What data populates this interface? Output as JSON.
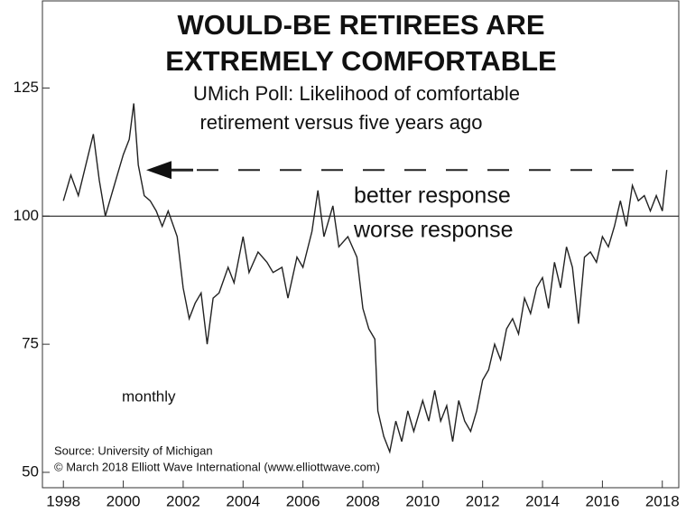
{
  "chart_data": {
    "type": "line",
    "title": [
      "WOULD-BE RETIREES ARE",
      "EXTREMELY COMFORTABLE"
    ],
    "subtitle": [
      "UMich Poll: Likelihood of comfortable",
      "retirement versus five years ago"
    ],
    "annotations": {
      "better": "better response",
      "worse": "worse response",
      "frequency": "monthly",
      "source": "Source: University of Michigan",
      "copyright": "© March 2018 Elliott Wave International (www.elliottwave.com)"
    },
    "reference_lines": [
      {
        "value": 100,
        "dash": false
      },
      {
        "value": 109,
        "dash": true
      }
    ],
    "series": [
      {
        "name": "UMich Poll",
        "color": "#222222",
        "x": [
          1998.0,
          1998.25,
          1998.5,
          1998.75,
          1999.0,
          1999.2,
          1999.4,
          1999.6,
          1999.8,
          2000.0,
          2000.2,
          2000.35,
          2000.5,
          2000.7,
          2000.9,
          2001.1,
          2001.3,
          2001.5,
          2001.8,
          2002.0,
          2002.2,
          2002.4,
          2002.6,
          2002.8,
          2003.0,
          2003.2,
          2003.5,
          2003.7,
          2004.0,
          2004.2,
          2004.5,
          2004.8,
          2005.0,
          2005.3,
          2005.5,
          2005.8,
          2006.0,
          2006.3,
          2006.5,
          2006.7,
          2007.0,
          2007.2,
          2007.5,
          2007.8,
          2008.0,
          2008.2,
          2008.4,
          2008.5,
          2008.7,
          2008.9,
          2009.1,
          2009.3,
          2009.5,
          2009.7,
          2010.0,
          2010.2,
          2010.4,
          2010.6,
          2010.8,
          2011.0,
          2011.2,
          2011.4,
          2011.6,
          2011.8,
          2012.0,
          2012.2,
          2012.4,
          2012.6,
          2012.8,
          2013.0,
          2013.2,
          2013.4,
          2013.6,
          2013.8,
          2014.0,
          2014.2,
          2014.4,
          2014.6,
          2014.8,
          2015.0,
          2015.2,
          2015.4,
          2015.6,
          2015.8,
          2016.0,
          2016.2,
          2016.4,
          2016.6,
          2016.8,
          2017.0,
          2017.2,
          2017.4,
          2017.6,
          2017.8,
          2018.0,
          2018.15
        ],
        "values": [
          103,
          108,
          104,
          110,
          116,
          107,
          100,
          104,
          108,
          112,
          115,
          122,
          110,
          104,
          103,
          101,
          98,
          101,
          96,
          86,
          80,
          83,
          85,
          75,
          84,
          85,
          90,
          87,
          96,
          89,
          93,
          91,
          89,
          90,
          84,
          92,
          90,
          97,
          105,
          96,
          102,
          94,
          96,
          92,
          82,
          78,
          76,
          62,
          57,
          54,
          60,
          56,
          62,
          58,
          64,
          60,
          66,
          60,
          63,
          56,
          64,
          60,
          58,
          62,
          68,
          70,
          75,
          72,
          78,
          80,
          77,
          84,
          81,
          86,
          88,
          82,
          91,
          86,
          94,
          90,
          79,
          92,
          93,
          91,
          96,
          94,
          98,
          103,
          98,
          106,
          103,
          104,
          101,
          104,
          101,
          109
        ]
      }
    ],
    "xlim": [
      1997.3,
      2018.55
    ],
    "ylim": [
      47,
      142
    ],
    "xticks": [
      1998,
      2000,
      2002,
      2004,
      2006,
      2008,
      2010,
      2012,
      2014,
      2016,
      2018
    ],
    "yticks": [
      50,
      75,
      100,
      125
    ]
  }
}
